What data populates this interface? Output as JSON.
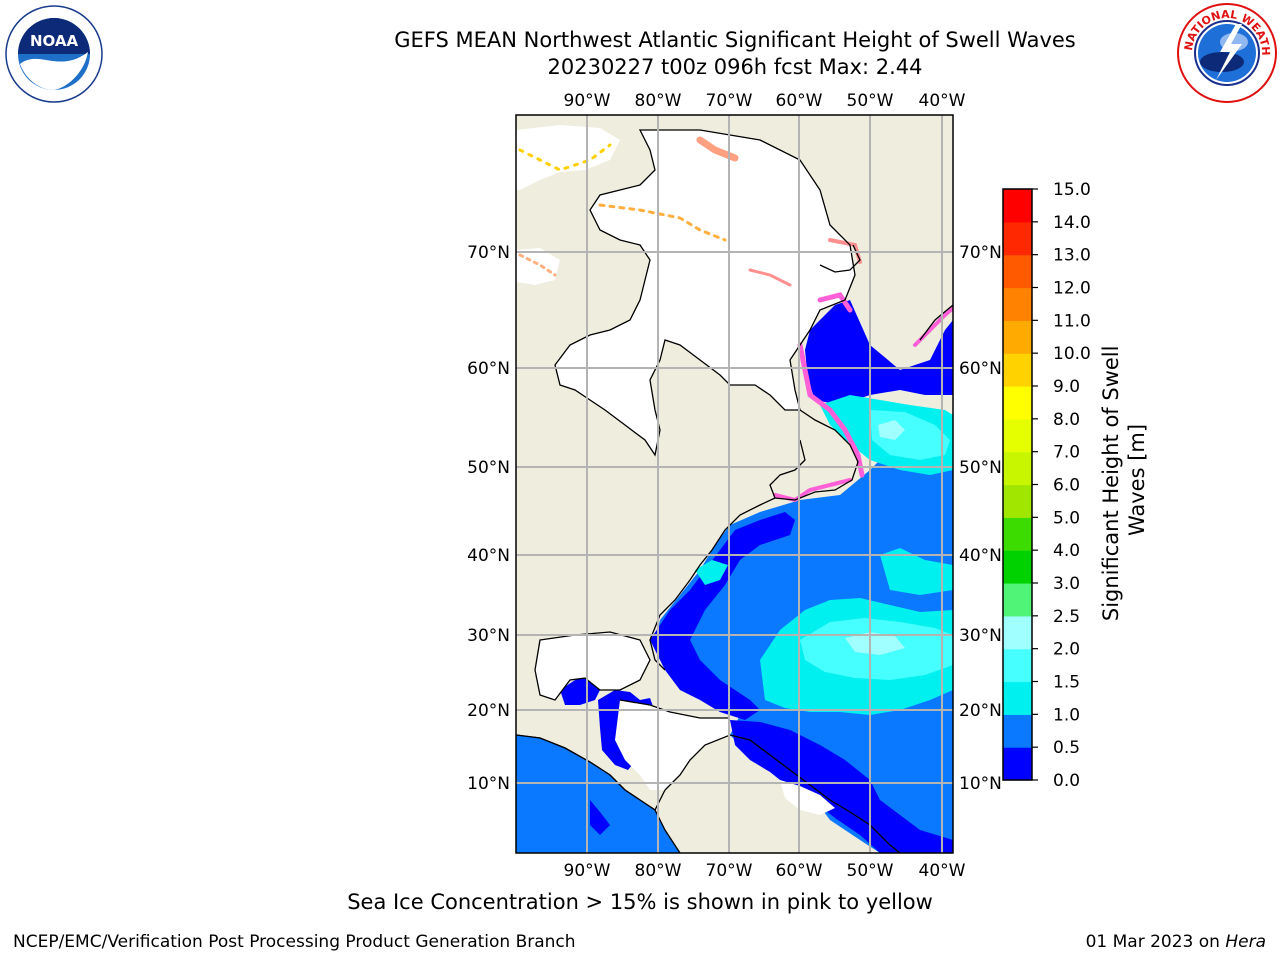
{
  "header": {
    "title_line1": "GEFS MEAN Northwest Atlantic Significant Height of Swell Waves",
    "title_line2": "20230227 t00z 096h fcst   Max: 2.44"
  },
  "logos": {
    "left": "NOAA",
    "right": "NATIONAL WEATHER SERVICE"
  },
  "map": {
    "lon_labels": [
      "90°W",
      "80°W",
      "70°W",
      "60°W",
      "50°W",
      "40°W"
    ],
    "lat_labels": [
      "70°N",
      "60°N",
      "50°N",
      "40°N",
      "30°N",
      "20°N",
      "10°N"
    ],
    "land_color": "#efedde",
    "grid_color": "#b4b4b4"
  },
  "colorbar": {
    "label": "Significant Height of Swell Waves [m]",
    "ticks": [
      "0.0",
      "0.5",
      "1.0",
      "1.5",
      "2.0",
      "2.5",
      "3.0",
      "4.0",
      "5.0",
      "6.0",
      "7.0",
      "8.0",
      "9.0",
      "10.0",
      "11.0",
      "12.0",
      "13.0",
      "14.0",
      "15.0"
    ],
    "colors": [
      "#0000ff",
      "#0a78ff",
      "#00f0f0",
      "#46ffff",
      "#a0ffff",
      "#50f578",
      "#00d200",
      "#3cdc00",
      "#a0e600",
      "#c8f500",
      "#e6ff00",
      "#ffff00",
      "#ffd200",
      "#ffaa00",
      "#ff8200",
      "#ff5a00",
      "#ff2800",
      "#ff0000"
    ]
  },
  "footer": {
    "note": "Sea Ice Concentration > 15% is shown in pink to yellow",
    "left": "NCEP/EMC/Verification Post Processing Product Generation Branch",
    "right_date": "01 Mar 2023 on ",
    "right_machine": "Hera"
  }
}
